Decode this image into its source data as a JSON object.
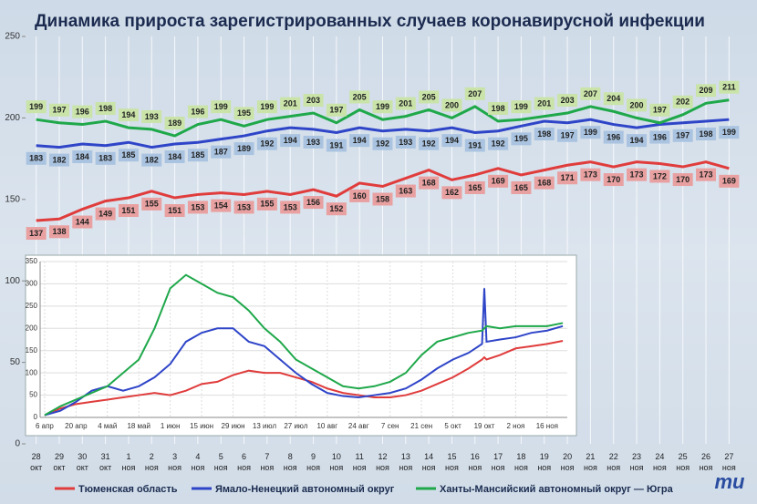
{
  "chart_data": [
    {
      "type": "line",
      "title": "Динамика прироста зарегистрированных случаев коронавирусной инфекции",
      "categories": [
        "28 окт",
        "29 окт",
        "30 окт",
        "31 окт",
        "1 ноя",
        "2 ноя",
        "3 ноя",
        "4 ноя",
        "5 ноя",
        "6 ноя",
        "7 ноя",
        "8 ноя",
        "9 ноя",
        "10 ноя",
        "11 ноя",
        "12 ноя",
        "13 ноя",
        "14 ноя",
        "15 ноя",
        "16 ноя",
        "17 ноя",
        "18 ноя",
        "19 ноя",
        "20 ноя",
        "21 ноя",
        "22 ноя",
        "23 ноя",
        "24 ноя",
        "25 ноя",
        "26 ноя",
        "27 ноя"
      ],
      "series": [
        {
          "name": "Тюменская область",
          "color": "#e03c3c",
          "label_color": "#e8a0a0",
          "label_side": "below",
          "values": [
            137,
            138,
            144,
            149,
            151,
            155,
            151,
            153,
            154,
            153,
            155,
            153,
            156,
            152,
            160,
            158,
            163,
            168,
            162,
            165,
            169,
            165,
            168,
            171,
            173,
            170,
            173,
            172,
            170,
            173,
            169
          ]
        },
        {
          "name": "Ямало-Ненецкий автономный округ",
          "color": "#2f45c8",
          "label_color": "#a9c3e0",
          "label_side": "below",
          "values": [
            183,
            182,
            184,
            183,
            185,
            182,
            184,
            185,
            187,
            189,
            192,
            194,
            193,
            191,
            194,
            192,
            193,
            192,
            194,
            191,
            192,
            195,
            198,
            197,
            199,
            196,
            194,
            196,
            197,
            198,
            199
          ]
        },
        {
          "name": "Ханты-Мансийский автономный округ — Югра",
          "color": "#1fa84a",
          "label_color": "#c9e3a8",
          "label_side": "above",
          "values": [
            199,
            197,
            196,
            198,
            194,
            193,
            189,
            196,
            199,
            195,
            199,
            201,
            203,
            197,
            205,
            199,
            201,
            205,
            200,
            207,
            198,
            199,
            201,
            203,
            207,
            204,
            200,
            197,
            202,
            209,
            211
          ]
        }
      ],
      "ylim": [
        0,
        250
      ],
      "yticks": [
        0,
        50,
        100,
        150,
        200,
        250
      ],
      "grid": true,
      "data_labels": true,
      "legend": "bottom"
    },
    {
      "type": "line",
      "x": [
        0,
        7,
        14,
        21,
        28,
        35,
        42,
        49,
        56,
        63,
        70,
        77,
        84,
        91,
        98,
        105,
        112,
        119,
        126,
        133,
        140,
        147,
        154,
        161,
        168,
        175,
        182,
        189,
        195,
        196,
        197,
        203,
        210,
        217,
        224,
        231
      ],
      "series": [
        {
          "color": "#e03c3c",
          "values": [
            5,
            20,
            30,
            35,
            40,
            45,
            50,
            55,
            50,
            60,
            75,
            80,
            95,
            105,
            100,
            100,
            90,
            80,
            65,
            55,
            50,
            45,
            45,
            50,
            60,
            75,
            90,
            110,
            130,
            135,
            130,
            140,
            155,
            160,
            165,
            172
          ]
        },
        {
          "color": "#2f45c8",
          "values": [
            5,
            15,
            35,
            60,
            70,
            60,
            70,
            90,
            120,
            170,
            190,
            200,
            200,
            170,
            160,
            130,
            100,
            75,
            55,
            48,
            45,
            50,
            55,
            65,
            85,
            110,
            130,
            145,
            165,
            290,
            170,
            175,
            180,
            190,
            195,
            205
          ]
        },
        {
          "color": "#1fa84a",
          "values": [
            5,
            25,
            40,
            55,
            70,
            100,
            130,
            200,
            290,
            320,
            300,
            280,
            270,
            240,
            200,
            170,
            130,
            110,
            90,
            70,
            65,
            70,
            80,
            100,
            140,
            170,
            180,
            190,
            195,
            200,
            205,
            200,
            205,
            205,
            205,
            212
          ]
        }
      ],
      "xlim": [
        -2,
        233
      ],
      "xticks": [
        {
          "value": 0,
          "label": "6 апр"
        },
        {
          "value": 14,
          "label": "20 апр"
        },
        {
          "value": 28,
          "label": "4 май"
        },
        {
          "value": 42,
          "label": "18 май"
        },
        {
          "value": 56,
          "label": "1 июн"
        },
        {
          "value": 70,
          "label": "15 июн"
        },
        {
          "value": 84,
          "label": "29 июн"
        },
        {
          "value": 98,
          "label": "13 июл"
        },
        {
          "value": 112,
          "label": "27 июл"
        },
        {
          "value": 126,
          "label": "10 авг"
        },
        {
          "value": 140,
          "label": "24 авг"
        },
        {
          "value": 154,
          "label": "7 сен"
        },
        {
          "value": 168,
          "label": "21 сен"
        },
        {
          "value": 182,
          "label": "5 окт"
        },
        {
          "value": 196,
          "label": "19 окт"
        },
        {
          "value": 210,
          "label": "2 ноя"
        },
        {
          "value": 224,
          "label": "16 ноя"
        }
      ],
      "ylim": [
        0,
        350
      ],
      "yticks": [
        0,
        50,
        100,
        150,
        200,
        250,
        300,
        350
      ],
      "grid": true
    }
  ],
  "logo": "mu"
}
